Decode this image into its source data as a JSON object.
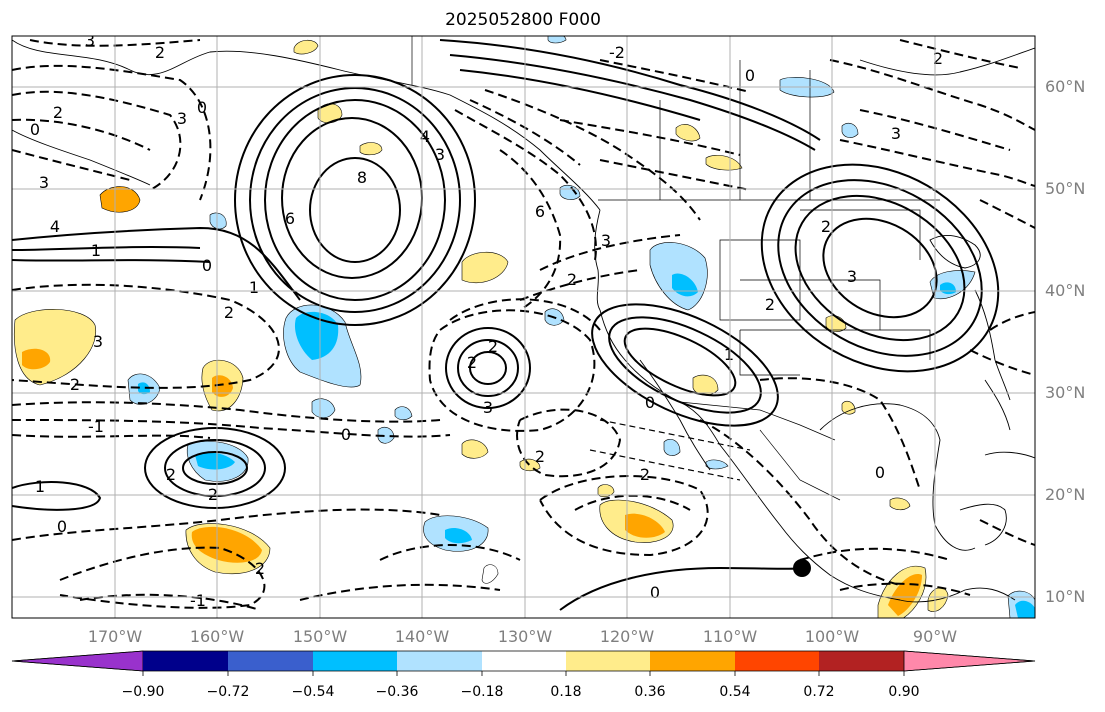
{
  "title": "2025052800 F000",
  "map": {
    "lat_labels": [
      "60°N",
      "50°N",
      "40°N",
      "30°N",
      "20°N",
      "10°N"
    ],
    "lon_labels": [
      "170°W",
      "160°W",
      "150°W",
      "140°W",
      "130°W",
      "120°W",
      "110°W",
      "100°W",
      "90°W"
    ],
    "contour_labels": [
      "0",
      "2",
      "3",
      "2",
      "3",
      "3",
      "0",
      "4",
      "1",
      "6",
      "8",
      "4",
      "3",
      "0",
      "1",
      "2",
      "3",
      "2",
      "6",
      "3",
      "2",
      "2",
      "3",
      "3",
      "2",
      "1",
      "2",
      "0",
      "-2",
      "0",
      "2",
      "2",
      "3",
      "2",
      "-1",
      "0",
      "2",
      "2",
      "2",
      "0",
      "1",
      "0",
      "-1",
      "0",
      "2"
    ],
    "marker": "black-dot"
  },
  "colorbar": {
    "colors": [
      "#9932cc",
      "#00008b",
      "#3a5fcd",
      "#00bfff",
      "#b0e2ff",
      "#ffffff",
      "#ffec8b",
      "#ffa500",
      "#ff4500",
      "#b22222",
      "#ff88aa"
    ],
    "tick_labels": [
      "−0.90",
      "−0.72",
      "−0.54",
      "−0.36",
      "−0.18",
      "0.18",
      "0.36",
      "0.54",
      "0.72",
      "0.90"
    ]
  },
  "shading_colors": {
    "light_blue": "#b0e2ff",
    "blue": "#00bfff",
    "light_yellow": "#ffec8b",
    "orange": "#ffa500"
  }
}
